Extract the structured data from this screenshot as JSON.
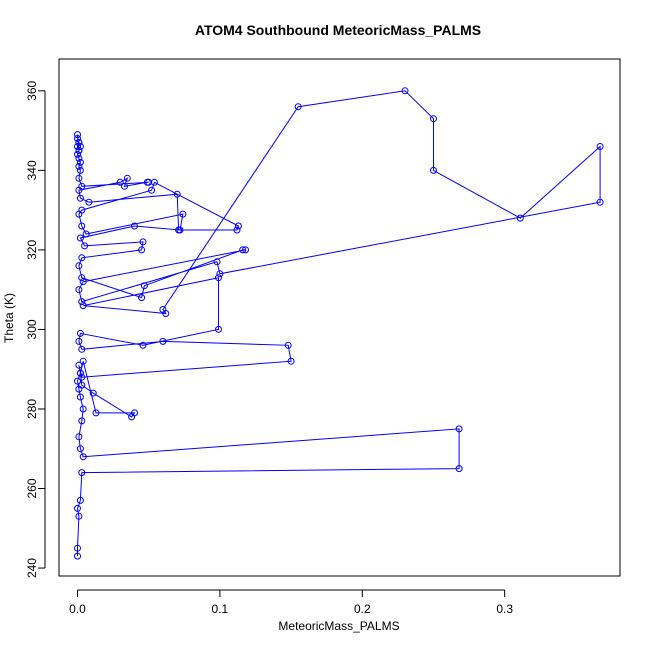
{
  "chart_data": {
    "type": "line",
    "title": "ATOM4 Southbound MeteoricMass_PALMS",
    "xlabel": "MeteoricMass_PALMS",
    "ylabel": "Theta (K)",
    "xlim": [
      -0.013,
      0.381
    ],
    "ylim": [
      238,
      368
    ],
    "x_ticks": [
      0.0,
      0.1,
      0.2,
      0.3
    ],
    "x_tick_labels": [
      "0.0",
      "0.1",
      "0.2",
      "0.3"
    ],
    "y_ticks": [
      240,
      260,
      280,
      300,
      320,
      340,
      360
    ],
    "y_tick_labels": [
      "240",
      "260",
      "280",
      "300",
      "320",
      "340",
      "360"
    ],
    "grid": false,
    "legend": "none",
    "marker": "open-circle",
    "color": "#0000ff",
    "series": [
      {
        "x": [
          0.0,
          0.0,
          0.001,
          0.0,
          0.002,
          0.003,
          0.268,
          0.268,
          0.004,
          0.002,
          0.001,
          0.003,
          0.004,
          0.002,
          0.001,
          0.0,
          0.002,
          0.004,
          0.013,
          0.04,
          0.038,
          0.011,
          0.003,
          0.002,
          0.001,
          0.003,
          0.15,
          0.148,
          0.06,
          0.003,
          0.001,
          0.002,
          0.046,
          0.099,
          0.099,
          0.004,
          0.062,
          0.06,
          0.155,
          0.23,
          0.25,
          0.25,
          0.311,
          0.367,
          0.367,
          0.1,
          0.098,
          0.003,
          0.001,
          0.004,
          0.118,
          0.116,
          0.047,
          0.045,
          0.003,
          0.001,
          0.003,
          0.045,
          0.046,
          0.005,
          0.002,
          0.04,
          0.072,
          0.074,
          0.006,
          0.003,
          0.001,
          0.003,
          0.052,
          0.054,
          0.113,
          0.112,
          0.071,
          0.07,
          0.008,
          0.002,
          0.001,
          0.03,
          0.035,
          0.033,
          0.049,
          0.05,
          0.003,
          0.001,
          0.002,
          0.001,
          0.002,
          0.001,
          0.0,
          0.001,
          0.002,
          0.001,
          0.0,
          0.001,
          0.0,
          0.001,
          0.0
        ],
        "y": [
          243,
          245,
          253,
          255,
          257,
          264,
          265,
          275,
          268,
          270,
          273,
          277,
          280,
          283,
          285,
          287,
          289,
          292,
          279,
          279,
          278,
          284,
          286,
          289,
          291,
          288,
          292,
          296,
          297,
          295,
          297,
          299,
          296,
          300,
          313,
          306,
          304,
          305,
          356,
          360,
          353,
          340,
          328,
          346,
          332,
          314,
          317,
          307,
          310,
          312,
          320,
          320,
          311,
          308,
          313,
          316,
          318,
          320,
          322,
          321,
          323,
          326,
          325,
          329,
          324,
          326,
          329,
          330,
          335,
          337,
          326,
          325,
          325,
          334,
          332,
          333,
          335,
          337,
          338,
          336,
          337,
          337,
          336,
          338,
          340,
          341,
          342,
          343,
          344,
          345,
          346,
          347,
          348,
          347,
          346,
          345,
          349
        ]
      }
    ]
  }
}
